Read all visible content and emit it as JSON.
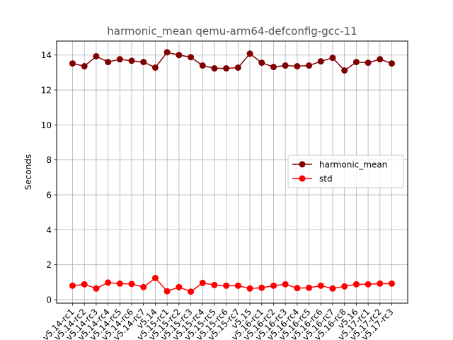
{
  "chart_data": {
    "type": "line",
    "title": "harmonic_mean qemu-arm64-defconfig-gcc-11",
    "xlabel": "",
    "ylabel": "Seconds",
    "ylim": [
      -0.2,
      14.8
    ],
    "yticks": [
      0,
      2,
      4,
      6,
      8,
      10,
      12,
      14
    ],
    "grid": true,
    "legend_position": "center-right",
    "categories": [
      "v5.14-rc1",
      "v5.14-rc2",
      "v5.14-rc3",
      "v5.14-rc4",
      "v5.14-rc5",
      "v5.14-rc6",
      "v5.14-rc7",
      "v5.14",
      "v5.15-rc1",
      "v5.15-rc2",
      "v5.15-rc3",
      "v5.15-rc4",
      "v5.15-rc5",
      "v5.15-rc6",
      "v5.15-rc7",
      "v5.15",
      "v5.16-rc1",
      "v5.16-rc2",
      "v5.16-rc3",
      "v5.16-rc4",
      "v5.16-rc5",
      "v5.16-rc6",
      "v5.16-rc7",
      "v5.16-rc8",
      "v5.16",
      "v5.17-rc1",
      "v5.17-rc2",
      "v5.17-rc3"
    ],
    "series": [
      {
        "name": "harmonic_mean",
        "color": "#800000",
        "values": [
          13.52,
          13.36,
          13.93,
          13.6,
          13.76,
          13.67,
          13.6,
          13.28,
          14.16,
          14.0,
          13.88,
          13.4,
          13.24,
          13.24,
          13.28,
          14.08,
          13.56,
          13.32,
          13.4,
          13.36,
          13.4,
          13.64,
          13.84,
          13.12,
          13.6,
          13.56,
          13.76,
          13.52
        ]
      },
      {
        "name": "std",
        "color": "#ff0000",
        "values": [
          0.8,
          0.88,
          0.64,
          0.98,
          0.92,
          0.9,
          0.72,
          1.24,
          0.48,
          0.72,
          0.46,
          0.96,
          0.84,
          0.8,
          0.8,
          0.64,
          0.68,
          0.8,
          0.88,
          0.66,
          0.68,
          0.8,
          0.64,
          0.76,
          0.88,
          0.88,
          0.92,
          0.92
        ]
      }
    ]
  }
}
